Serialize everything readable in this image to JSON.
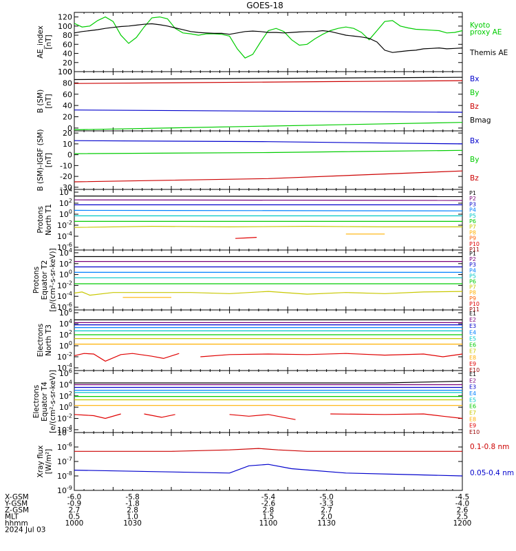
{
  "title": "GOES-18",
  "colors": {
    "black": "#000000",
    "green": "#00cc00",
    "blue": "#0000cc",
    "red": "#cc0000"
  },
  "chart_data": [
    {
      "type": "line",
      "ylabel": [
        "AE_index",
        "[nT]"
      ],
      "ylim": [
        0,
        130
      ],
      "yticks": [
        0,
        20,
        40,
        60,
        80,
        100,
        120
      ],
      "x": [
        1000,
        1004,
        1008,
        1012,
        1016,
        1020,
        1024,
        1028,
        1032,
        1036,
        1040,
        1044,
        1048,
        1052,
        1056,
        1060,
        1064,
        1068,
        1072,
        1076,
        1080,
        1084,
        1088,
        1092,
        1096,
        1100,
        1104,
        1108,
        1112,
        1116,
        1120,
        1124,
        1128,
        1132,
        1136,
        1140,
        1144,
        1148,
        1152,
        1156,
        1160,
        1164,
        1168,
        1172,
        1176,
        1180,
        1184,
        1188,
        1192,
        1196,
        1200
      ],
      "series": [
        {
          "name": "Kyoto proxy AE",
          "color": "green",
          "values": [
            106,
            98,
            100,
            112,
            120,
            110,
            80,
            62,
            75,
            98,
            118,
            120,
            116,
            95,
            85,
            83,
            80,
            83,
            83,
            82,
            78,
            50,
            30,
            38,
            65,
            90,
            95,
            88,
            70,
            58,
            60,
            72,
            82,
            90,
            95,
            98,
            95,
            86,
            70,
            90,
            110,
            112,
            100,
            96,
            93,
            92,
            91,
            90,
            85,
            86,
            90
          ]
        },
        {
          "name": "Themis AE",
          "color": "black",
          "values": [
            85,
            88,
            90,
            92,
            95,
            97,
            99,
            100,
            102,
            104,
            105,
            103,
            100,
            96,
            92,
            88,
            86,
            85,
            84,
            84,
            82,
            85,
            88,
            89,
            88,
            86,
            86,
            85,
            86,
            87,
            88,
            88,
            90,
            88,
            84,
            80,
            78,
            76,
            73,
            65,
            47,
            42,
            44,
            46,
            47,
            50,
            51,
            52,
            50,
            51,
            52
          ]
        }
      ]
    },
    {
      "type": "line",
      "ylabel": [
        "B (SM)",
        "[nT]"
      ],
      "ylim": [
        -5,
        100
      ],
      "yticks": [
        0,
        20,
        40,
        60,
        80,
        100
      ],
      "series": [
        {
          "name": "Bx",
          "color": "blue",
          "x": [
            1000,
            1200
          ],
          "values": [
            32,
            28
          ]
        },
        {
          "name": "By",
          "color": "green",
          "x": [
            1000,
            1200
          ],
          "values": [
            -3,
            10
          ]
        },
        {
          "name": "Bz",
          "color": "red",
          "x": [
            1000,
            1200
          ],
          "values": [
            79,
            84
          ]
        },
        {
          "name": "Bmag",
          "color": "black",
          "x": [
            1000,
            1200
          ],
          "values": [
            86,
            90
          ]
        }
      ]
    },
    {
      "type": "line",
      "ylabel": [
        "B (SM)-IGRF (SM)",
        "[nT]"
      ],
      "ylim": [
        -32,
        22
      ],
      "yticks": [
        -30,
        -20,
        -10,
        0,
        10,
        20
      ],
      "series": [
        {
          "name": "Bx",
          "color": "blue",
          "x": [
            1000,
            1100,
            1200
          ],
          "values": [
            13,
            12,
            10
          ]
        },
        {
          "name": "By",
          "color": "green",
          "x": [
            1000,
            1100,
            1200
          ],
          "values": [
            1,
            2,
            4
          ]
        },
        {
          "name": "Bz",
          "color": "red",
          "x": [
            1000,
            1100,
            1200
          ],
          "values": [
            -25,
            -22,
            -15
          ]
        }
      ]
    },
    {
      "type": "line",
      "scale": "log",
      "ylabel": [
        "Protons",
        "North T1"
      ],
      "ylim_exp": [
        -6.5,
        4.5
      ],
      "ytick_exps": [
        -6,
        -4,
        -2,
        0,
        2,
        4
      ],
      "channels": [
        "P1",
        "P2",
        "P3",
        "P4",
        "P5",
        "P6",
        "P7",
        "P8",
        "P9",
        "P10",
        "P11"
      ],
      "channel_colors": [
        "#000000",
        "#7a007a",
        "#0000cc",
        "#0080ff",
        "#00c8c8",
        "#00cc00",
        "#c8c800",
        "#ffb000",
        "#ff6000",
        "#e00000",
        "#990000"
      ],
      "series": [
        {
          "name": "P1",
          "x": [
            1000,
            1200
          ],
          "values_exp": [
            3.3,
            3.2
          ]
        },
        {
          "name": "P2",
          "x": [
            1000,
            1200
          ],
          "values_exp": [
            2.6,
            2.5
          ]
        },
        {
          "name": "P3",
          "x": [
            1000,
            1200
          ],
          "values_exp": [
            1.7,
            1.7
          ]
        },
        {
          "name": "P4",
          "x": [
            1000,
            1200
          ],
          "values_exp": [
            0.7,
            0.6
          ]
        },
        {
          "name": "P5",
          "x": [
            1000,
            1200
          ],
          "values_exp": [
            -0.3,
            -0.3
          ]
        },
        {
          "name": "P6",
          "x": [
            1000,
            1200
          ],
          "values_exp": [
            -1.3,
            -1.3
          ]
        },
        {
          "name": "P7",
          "x": [
            1000,
            1040,
            1080,
            1120,
            1160,
            1200
          ],
          "values_exp": [
            -2.4,
            -2.2,
            -2.3,
            -2.2,
            -2.3,
            -2.3
          ]
        },
        {
          "name": "P8",
          "x": [
            1140,
            1160
          ],
          "values_exp": [
            -3.6,
            -3.6
          ]
        },
        {
          "name": "P10",
          "x": [
            1083,
            1089,
            1094
          ],
          "values_exp": [
            -4.4,
            -4.3,
            -4.2
          ]
        }
      ]
    },
    {
      "type": "line",
      "scale": "log",
      "ylabel": [
        "Protons",
        "Equator T2",
        "[p/(cm²-s-sr-keV)]"
      ],
      "ylim_exp": [
        -6.5,
        4.5
      ],
      "ytick_exps": [
        -6,
        -4,
        -2,
        0,
        2,
        4
      ],
      "channels": [
        "P1",
        "P2",
        "P3",
        "P4",
        "P5",
        "P6",
        "P7",
        "P8",
        "P9",
        "P10",
        "P11"
      ],
      "series": [
        {
          "name": "P1",
          "x": [
            1000,
            1200
          ],
          "values_exp": [
            3.3,
            3.3
          ]
        },
        {
          "name": "P2",
          "x": [
            1000,
            1200
          ],
          "values_exp": [
            2.4,
            2.4
          ]
        },
        {
          "name": "P3",
          "x": [
            1000,
            1200
          ],
          "values_exp": [
            1.4,
            1.4
          ]
        },
        {
          "name": "P4",
          "x": [
            1000,
            1200
          ],
          "values_exp": [
            0.4,
            0.4
          ]
        },
        {
          "name": "P5",
          "x": [
            1000,
            1200
          ],
          "values_exp": [
            -0.6,
            -0.6
          ]
        },
        {
          "name": "P6",
          "x": [
            1000,
            1200
          ],
          "values_exp": [
            -1.7,
            -1.7
          ]
        },
        {
          "name": "P7",
          "x": [
            1000,
            1004,
            1008,
            1020,
            1040,
            1060,
            1080,
            1100,
            1120,
            1140,
            1160,
            1180,
            1200
          ],
          "values_exp": [
            -3.4,
            -3.2,
            -3.8,
            -3.3,
            -3.3,
            -3.3,
            -3.5,
            -3.1,
            -3.6,
            -3.3,
            -3.5,
            -3.2,
            -3.1
          ]
        },
        {
          "name": "P8",
          "x": [
            1025,
            1050
          ],
          "values_exp": [
            -4.2,
            -4.2
          ]
        }
      ]
    },
    {
      "type": "line",
      "scale": "log",
      "ylabel": [
        "Electrons",
        "North T3"
      ],
      "ylim_exp": [
        -4.5,
        6.5
      ],
      "ytick_exps": [
        -4,
        -2,
        0,
        2,
        4,
        6
      ],
      "channels": [
        "E1",
        "E2",
        "E3",
        "E4",
        "E5",
        "E6",
        "E7",
        "E8",
        "E9",
        "E10"
      ],
      "channel_colors": [
        "#000000",
        "#7a007a",
        "#0000cc",
        "#0080ff",
        "#00c8c8",
        "#00cc00",
        "#c8c800",
        "#ffb000",
        "#e00000",
        "#990000"
      ],
      "series": [
        {
          "name": "E1",
          "x": [
            1000,
            1200
          ],
          "values_exp": [
            4.7,
            4.7
          ]
        },
        {
          "name": "E2",
          "x": [
            1000,
            1200
          ],
          "values_exp": [
            4.2,
            4.2
          ]
        },
        {
          "name": "E3",
          "x": [
            1000,
            1200
          ],
          "values_exp": [
            3.8,
            3.8
          ]
        },
        {
          "name": "E4",
          "x": [
            1000,
            1200
          ],
          "values_exp": [
            3.3,
            3.3
          ]
        },
        {
          "name": "E5",
          "x": [
            1000,
            1200
          ],
          "values_exp": [
            2.7,
            2.7
          ]
        },
        {
          "name": "E6",
          "x": [
            1000,
            1200
          ],
          "values_exp": [
            2.0,
            2.0
          ]
        },
        {
          "name": "E7",
          "x": [
            1000,
            1200
          ],
          "values_exp": [
            1.3,
            1.3
          ]
        },
        {
          "name": "E8",
          "x": [
            1000,
            1200
          ],
          "values_exp": [
            0.3,
            0.3
          ]
        },
        {
          "name": "E9",
          "x": [
            1000,
            1005,
            1010,
            1016,
            1024,
            1030,
            1040,
            1046,
            1054
          ],
          "values_exp": [
            -1.8,
            -1.4,
            -1.5,
            -2.8,
            -1.6,
            -1.4,
            -1.9,
            -2.3,
            -1.4
          ]
        },
        {
          "name": "E9",
          "x": [
            1065,
            1080,
            1100,
            1120,
            1140,
            1160,
            1180,
            1190,
            1200
          ],
          "values_exp": [
            -2.0,
            -1.6,
            -1.5,
            -1.6,
            -1.4,
            -1.7,
            -1.5,
            -2.0,
            -1.5
          ]
        }
      ]
    },
    {
      "type": "line",
      "scale": "log",
      "ylabel": [
        "Electrons",
        "Equator T4",
        "[e/(cm²-s-sr-keV)]"
      ],
      "ylim_exp": [
        -4.5,
        6.5
      ],
      "ytick_exps": [
        -4,
        -2,
        0,
        2,
        4,
        6
      ],
      "channels": [
        "E1",
        "E2",
        "E3",
        "E4",
        "E5",
        "E6",
        "E7",
        "E8",
        "E9",
        "E10"
      ],
      "series": [
        {
          "name": "E1",
          "x": [
            1000,
            1160,
            1200
          ],
          "values_exp": [
            4.3,
            4.3,
            4.6
          ]
        },
        {
          "name": "E2",
          "x": [
            1000,
            1200
          ],
          "values_exp": [
            4.0,
            4.0
          ]
        },
        {
          "name": "E3",
          "x": [
            1000,
            1200
          ],
          "values_exp": [
            3.5,
            3.5
          ]
        },
        {
          "name": "E4",
          "x": [
            1000,
            1200
          ],
          "values_exp": [
            3.0,
            3.0
          ]
        },
        {
          "name": "E5",
          "x": [
            1000,
            1200
          ],
          "values_exp": [
            2.6,
            2.6
          ]
        },
        {
          "name": "E6",
          "x": [
            1000,
            1200
          ],
          "values_exp": [
            1.9,
            1.9
          ]
        },
        {
          "name": "E7",
          "x": [
            1000,
            1200
          ],
          "values_exp": [
            1.3,
            1.3
          ]
        },
        {
          "name": "E8",
          "x": [
            1000,
            1200
          ],
          "values_exp": [
            0.3,
            0.3
          ]
        },
        {
          "name": "E9",
          "x": [
            1000,
            1010,
            1016,
            1024
          ],
          "values_exp": [
            -1.3,
            -1.5,
            -2.0,
            -1.2
          ]
        },
        {
          "name": "E9",
          "x": [
            1036,
            1045,
            1052
          ],
          "values_exp": [
            -1.2,
            -1.8,
            -1.3
          ]
        },
        {
          "name": "E9",
          "x": [
            1080,
            1090,
            1100,
            1114
          ],
          "values_exp": [
            -1.3,
            -1.6,
            -1.3,
            -2.2
          ]
        },
        {
          "name": "E9",
          "x": [
            1132,
            1160,
            1180,
            1190,
            1200
          ],
          "values_exp": [
            -1.2,
            -1.3,
            -1.2,
            -1.6,
            -2.0
          ]
        }
      ]
    },
    {
      "type": "line",
      "scale": "log",
      "ylabel": [
        "Xray flux",
        "[W/m²]"
      ],
      "ylim_exp": [
        -9,
        -5
      ],
      "ytick_exps": [
        -9,
        -8,
        -7,
        -6,
        -5
      ],
      "series": [
        {
          "name": "0.1-0.8 nm",
          "color": "red",
          "x": [
            1000,
            1050,
            1080,
            1095,
            1105,
            1120,
            1160,
            1200
          ],
          "values_exp": [
            -6.3,
            -6.3,
            -6.2,
            -6.1,
            -6.2,
            -6.3,
            -6.3,
            -6.3
          ]
        },
        {
          "name": "0.05-0.4 nm",
          "color": "blue",
          "x": [
            1000,
            1040,
            1080,
            1090,
            1100,
            1112,
            1140,
            1170,
            1200
          ],
          "values_exp": [
            -7.6,
            -7.7,
            -7.8,
            -7.3,
            -7.2,
            -7.5,
            -7.8,
            -7.9,
            -8.0
          ]
        }
      ]
    }
  ],
  "xaxis": {
    "rows": [
      {
        "label": "X-GSM",
        "values": [
          "-6.0",
          "-5.8",
          "-5.4",
          "-5.0",
          "-4.5"
        ]
      },
      {
        "label": "Y-GSM",
        "values": [
          "-0.9",
          "-1.8",
          "-2.6",
          "-3.3",
          "-4.0"
        ]
      },
      {
        "label": "Z-GSM",
        "values": [
          "2.7",
          "2.8",
          "2.8",
          "2.7",
          "2.6"
        ]
      },
      {
        "label": "MLT",
        "values": [
          "0.5",
          "1.0",
          "1.5",
          "2.0",
          "2.5"
        ]
      },
      {
        "label": "hhmm",
        "values": [
          "1000",
          "1030",
          "1100",
          "1130",
          "1200"
        ]
      }
    ],
    "date": "2024 Jul 03"
  },
  "legends": [
    [
      {
        "text": "Kyoto",
        "color": "green"
      },
      {
        "text": "proxy AE",
        "color": "green"
      },
      {
        "text": "Themis AE",
        "color": "black"
      }
    ],
    [
      {
        "text": "Bx",
        "color": "blue"
      },
      {
        "text": "By",
        "color": "green"
      },
      {
        "text": "Bz",
        "color": "red"
      },
      {
        "text": "Bmag",
        "color": "black"
      }
    ],
    [
      {
        "text": "Bx",
        "color": "blue"
      },
      {
        "text": "By",
        "color": "green"
      },
      {
        "text": "Bz",
        "color": "red"
      }
    ],
    null,
    null,
    null,
    null,
    [
      {
        "text": "0.1-0.8 nm",
        "color": "red"
      },
      {
        "text": "0.05-0.4 nm",
        "color": "blue"
      }
    ]
  ]
}
